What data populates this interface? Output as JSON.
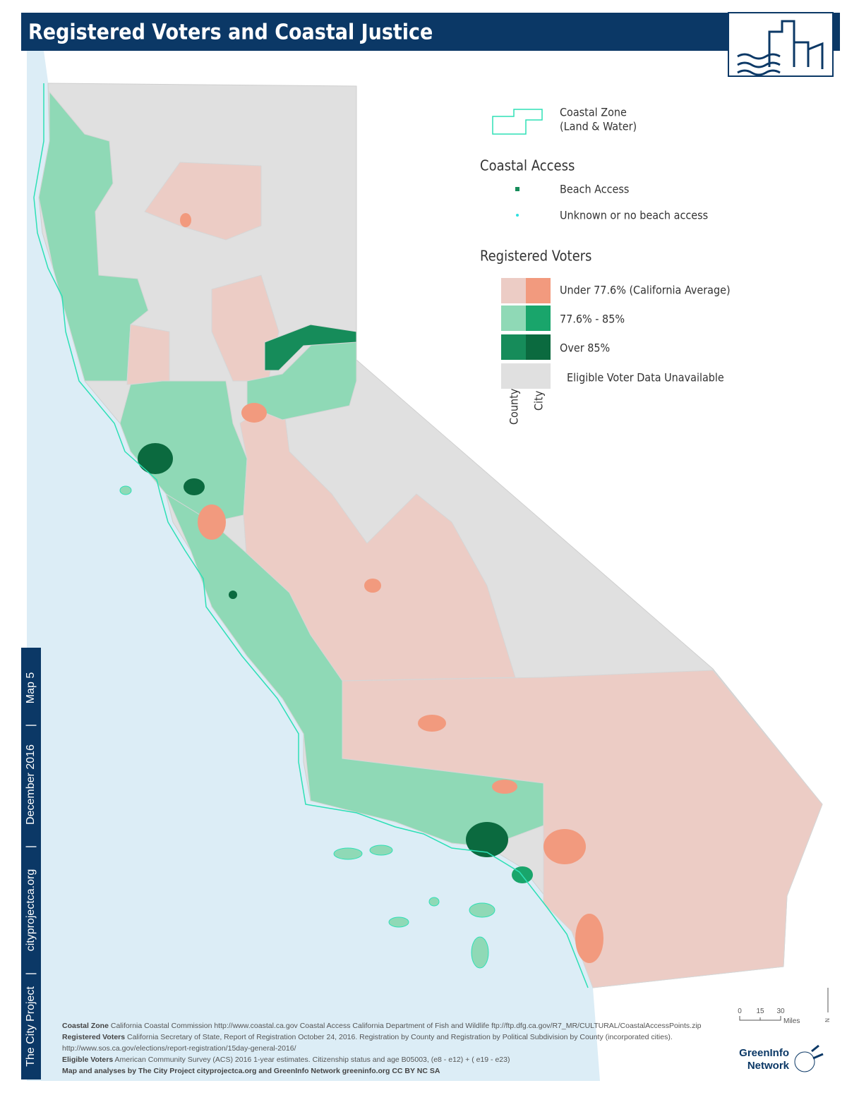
{
  "header": {
    "title": "Registered Voters and Coastal Justice"
  },
  "sidebar": {
    "items": [
      "The City Project",
      "cityprojectca.org",
      "December 2016",
      "Map 5"
    ],
    "separator": "|"
  },
  "legend": {
    "coastal_zone": [
      "Coastal Zone",
      "(Land & Water)"
    ],
    "coastal_access": {
      "title": "Coastal Access",
      "items": [
        "Beach Access",
        "Unknown or no beach access"
      ]
    },
    "registered_voters": {
      "title": "Registered Voters",
      "items": [
        "Under 77.6% (California Average)",
        "77.6% - 85%",
        "Over 85%",
        "Eligible Voter Data Unavailable"
      ],
      "column_labels": [
        "County",
        "City"
      ]
    }
  },
  "scale": {
    "ticks": [
      0,
      15,
      30
    ],
    "unit": "Miles"
  },
  "north": "N",
  "sources": [
    {
      "label": "Coastal Zone",
      "text": " California Coastal Commission http://www.coastal.ca.gov Coastal Access California Department of Fish and Wildlife ftp://ftp.dfg.ca.gov/R7_MR/CULTURAL/CoastalAccessPoints.zip"
    },
    {
      "label": "Registered Voters",
      "text": " California Secretary of State, Report of Registration October 24, 2016. Registration by County and Registration by Political Subdivision by County (incorporated cities)."
    },
    {
      "text": "http://www.sos.ca.gov/elections/report-registration/15day-general-2016/"
    },
    {
      "label": "Eligible Voters",
      "text": "  American Community Survey (ACS) 2016 1-year estimates.  Citizenship status and age B05003, (e8 - e12) + ( e19 - e23)"
    },
    {
      "label": "Map and analyses by The City Project cityprojectca.org and GreenInfo Network greeninfo.org CC BY NC SA"
    }
  ],
  "logo": {
    "lines": [
      "GreenInfo",
      "Network"
    ]
  }
}
